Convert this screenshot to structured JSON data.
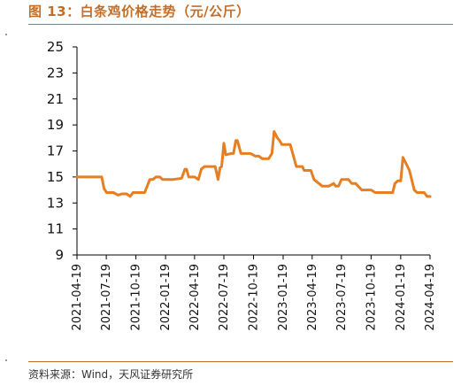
{
  "title": "图 13：白条鸡价格走势（元/公斤）",
  "source": "资料来源：Wind，天风证券研究所",
  "chart_data": {
    "type": "line",
    "ylim": [
      9,
      25
    ],
    "yticks": [
      9,
      11,
      13,
      15,
      17,
      19,
      21,
      23,
      25
    ],
    "xticks": [
      "2021-04-19",
      "2021-07-19",
      "2021-10-19",
      "2022-01-19",
      "2022-04-19",
      "2022-07-19",
      "2022-10-19",
      "2023-01-19",
      "2023-04-19",
      "2023-07-19",
      "2023-10-19",
      "2024-01-19",
      "2024-04-19"
    ],
    "grid": false,
    "legend": "none",
    "color": "#e67e22",
    "series": [
      {
        "x": [
          "2021-04-19",
          "2021-05-15",
          "2021-06-15",
          "2021-07-05",
          "2021-07-12",
          "2021-07-20",
          "2021-08-10",
          "2021-08-25",
          "2021-09-05",
          "2021-09-20",
          "2021-10-01",
          "2021-10-10",
          "2021-10-25",
          "2021-11-15",
          "2021-12-01",
          "2021-12-10",
          "2021-12-20",
          "2022-01-01",
          "2022-01-10",
          "2022-01-19",
          "2022-02-10",
          "2022-03-10",
          "2022-03-20",
          "2022-03-25",
          "2022-04-01",
          "2022-04-19",
          "2022-05-01",
          "2022-05-10",
          "2022-05-20",
          "2022-06-05",
          "2022-06-15",
          "2022-06-22",
          "2022-07-01",
          "2022-07-07",
          "2022-07-12",
          "2022-07-19",
          "2022-07-25",
          "2022-08-10",
          "2022-08-18",
          "2022-08-25",
          "2022-08-30",
          "2022-09-10",
          "2022-09-20",
          "2022-10-10",
          "2022-10-25",
          "2022-11-05",
          "2022-11-15",
          "2022-12-05",
          "2022-12-15",
          "2022-12-22",
          "2023-01-01",
          "2023-01-08",
          "2023-01-15",
          "2023-01-25",
          "2023-02-10",
          "2023-03-01",
          "2023-03-20",
          "2023-03-25",
          "2023-04-15",
          "2023-04-25",
          "2023-05-10",
          "2023-05-20",
          "2023-06-10",
          "2023-06-25",
          "2023-07-01",
          "2023-07-10",
          "2023-07-19",
          "2023-07-25",
          "2023-08-10",
          "2023-08-20",
          "2023-09-01",
          "2023-09-20",
          "2023-10-05",
          "2023-10-19",
          "2023-11-01",
          "2023-12-01",
          "2023-12-25",
          "2024-01-01",
          "2024-01-10",
          "2024-01-19",
          "2024-01-26",
          "2024-02-05",
          "2024-02-15",
          "2024-03-01",
          "2024-03-10",
          "2024-03-25",
          "2024-04-01",
          "2024-04-10",
          "2024-04-19"
        ],
        "y": [
          15.0,
          15.0,
          15.0,
          15.0,
          14.1,
          13.8,
          13.8,
          13.6,
          13.7,
          13.7,
          13.5,
          13.8,
          13.8,
          13.8,
          14.8,
          14.8,
          15.0,
          15.0,
          14.8,
          14.8,
          14.8,
          14.9,
          15.6,
          15.6,
          15.0,
          15.0,
          14.8,
          15.6,
          15.8,
          15.8,
          15.8,
          15.8,
          14.8,
          15.7,
          15.8,
          17.6,
          16.7,
          16.8,
          16.8,
          17.8,
          17.8,
          16.8,
          16.8,
          16.8,
          16.6,
          16.6,
          16.4,
          16.4,
          16.8,
          18.5,
          18.0,
          17.8,
          17.5,
          17.5,
          17.5,
          15.8,
          15.8,
          15.5,
          15.5,
          14.8,
          14.5,
          14.3,
          14.3,
          14.5,
          14.3,
          14.3,
          14.8,
          14.8,
          14.8,
          14.5,
          14.5,
          14.0,
          14.0,
          14.0,
          13.8,
          13.8,
          13.8,
          14.5,
          14.7,
          14.7,
          16.5,
          16.0,
          15.5,
          14.0,
          13.8,
          13.8,
          13.8,
          13.5,
          13.5
        ]
      }
    ]
  }
}
